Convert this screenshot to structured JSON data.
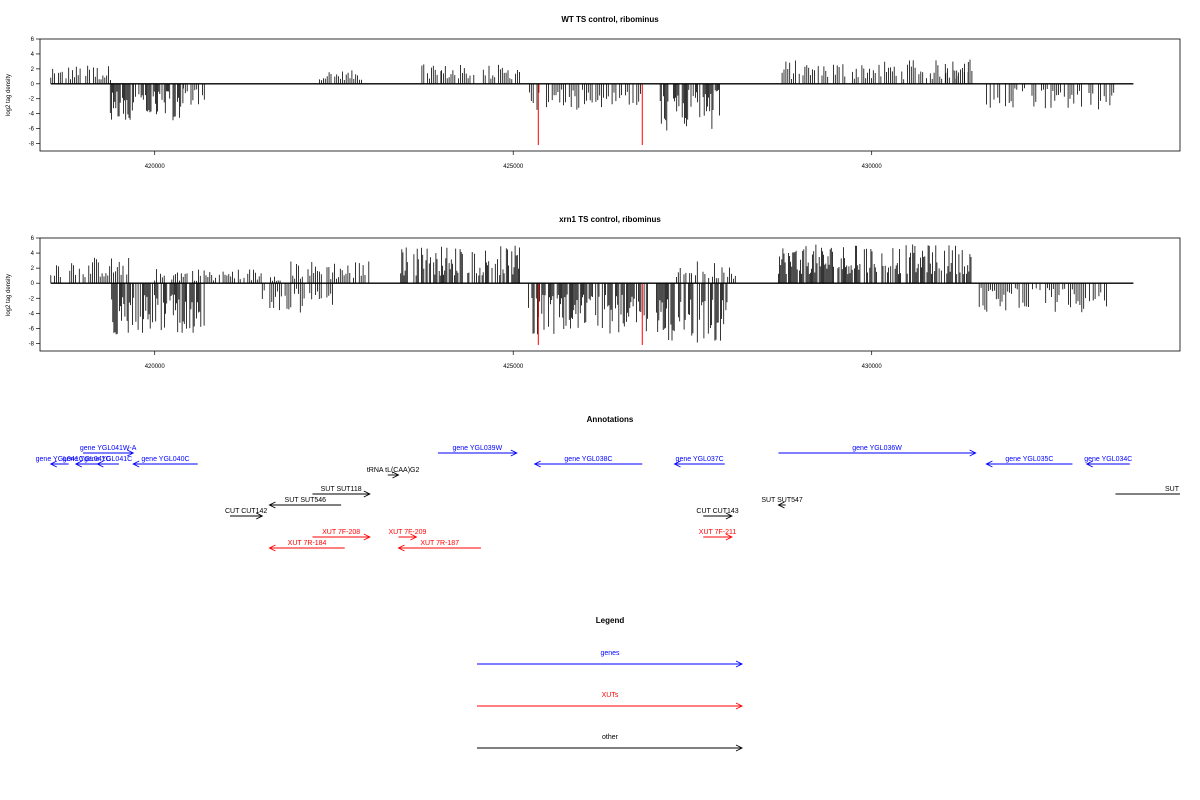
{
  "chart_data": [
    {
      "type": "bar",
      "title": "WT TS control, ribominus",
      "ylabel": "log2 tag density",
      "xlabel": "",
      "xlim": [
        418400,
        434300
      ],
      "ylim": [
        -9,
        6
      ],
      "xticks": [
        420000,
        425000,
        430000
      ],
      "xtick_labels": [
        "420000",
        "425000",
        "430000"
      ],
      "yticks": [
        6,
        4,
        2,
        0,
        -2,
        -4,
        -6,
        -8
      ],
      "ytick_labels": [
        "6",
        "4",
        "2",
        "0",
        "-2",
        "-4",
        "-6",
        "-8"
      ],
      "grid": false,
      "legend": "none",
      "colors": {
        "signal": "#000000",
        "highlight": "#ff0000",
        "baseline": "#000000"
      },
      "highlight_positions": [
        425350,
        426800
      ],
      "highlight_values": [
        -8.2,
        -8.2
      ],
      "baseline_range": [
        418550,
        433650
      ],
      "plus_segments": [
        [
          418550,
          418800,
          0.5,
          2.0
        ],
        [
          418800,
          419400,
          0.5,
          2.5
        ],
        [
          422300,
          422900,
          0.5,
          1.8
        ],
        [
          423700,
          424000,
          0.7,
          3.0
        ],
        [
          424000,
          425100,
          0.6,
          2.6
        ],
        [
          428750,
          431350,
          0.6,
          3.2
        ],
        [
          431000,
          431400,
          1.5,
          3.4
        ]
      ],
      "minus_segments": [
        [
          419350,
          420400,
          -1.0,
          -5.0
        ],
        [
          420400,
          420700,
          -0.6,
          -3.5
        ],
        [
          425200,
          426300,
          -0.6,
          -3.5
        ],
        [
          426300,
          426800,
          -0.8,
          -3.0
        ],
        [
          427050,
          427900,
          -0.8,
          -6.5
        ],
        [
          431600,
          433400,
          -0.6,
          -3.6
        ]
      ]
    },
    {
      "type": "bar",
      "title": "xrn1 TS control, ribominus",
      "ylabel": "log2 tag density",
      "xlabel": "",
      "xlim": [
        418400,
        434300
      ],
      "ylim": [
        -9,
        6
      ],
      "xticks": [
        420000,
        425000,
        430000
      ],
      "xtick_labels": [
        "420000",
        "425000",
        "430000"
      ],
      "yticks": [
        6,
        4,
        2,
        0,
        -2,
        -4,
        -6,
        -8
      ],
      "ytick_labels": [
        "6",
        "4",
        "2",
        "0",
        "-2",
        "-4",
        "-6",
        "-8"
      ],
      "grid": false,
      "legend": "none",
      "colors": {
        "signal": "#000000",
        "highlight": "#ff0000",
        "baseline": "#000000"
      },
      "highlight_positions": [
        425350,
        426800
      ],
      "highlight_values": [
        -8.2,
        -8.2
      ],
      "baseline_range": [
        418550,
        433650
      ],
      "plus_segments": [
        [
          418550,
          419650,
          0.8,
          3.5
        ],
        [
          420000,
          421800,
          0.3,
          2.0
        ],
        [
          421900,
          423000,
          0.5,
          3.0
        ],
        [
          423400,
          425100,
          1.0,
          5.0
        ],
        [
          427250,
          428100,
          0.6,
          3.0
        ],
        [
          428700,
          431400,
          1.2,
          5.2
        ]
      ],
      "minus_segments": [
        [
          419400,
          420700,
          -1.5,
          -7.0
        ],
        [
          421500,
          422500,
          -0.6,
          -4.0
        ],
        [
          425200,
          426900,
          -1.5,
          -6.8
        ],
        [
          427000,
          428000,
          -2.0,
          -8.0
        ],
        [
          431500,
          433300,
          -0.6,
          -4.0
        ]
      ]
    }
  ],
  "annotations": {
    "title": "Annotations",
    "features": [
      {
        "label": "gene YGL041W-A",
        "color": "#0000ff",
        "start": 419000,
        "end": 419700,
        "dir": "right",
        "row": "gene_upper"
      },
      {
        "label": "gene YGL041C",
        "color": "#0000ff",
        "start": 418550,
        "end": 418800,
        "dir": "left",
        "row": "gene_lower"
      },
      {
        "label": "gene YGL041C",
        "color": "#0000ff",
        "start": 418900,
        "end": 419200,
        "dir": "left",
        "row": "gene_lower"
      },
      {
        "label": "gene YGL041C",
        "color": "#0000ff",
        "start": 419200,
        "end": 419500,
        "dir": "left",
        "row": "gene_lower"
      },
      {
        "label": "gene YGL040C",
        "color": "#0000ff",
        "start": 419700,
        "end": 420600,
        "dir": "left",
        "row": "gene_lower"
      },
      {
        "label": "gene YGL039W",
        "color": "#0000ff",
        "start": 423950,
        "end": 425050,
        "dir": "right",
        "row": "gene_upper"
      },
      {
        "label": "gene YGL038C",
        "color": "#0000ff",
        "start": 425300,
        "end": 426800,
        "dir": "left",
        "row": "gene_lower"
      },
      {
        "label": "gene YGL037C",
        "color": "#0000ff",
        "start": 427250,
        "end": 427950,
        "dir": "left",
        "row": "gene_lower"
      },
      {
        "label": "gene YGL036W",
        "color": "#0000ff",
        "start": 428700,
        "end": 431450,
        "dir": "right",
        "row": "gene_upper"
      },
      {
        "label": "gene YGL035C",
        "color": "#0000ff",
        "start": 431600,
        "end": 432800,
        "dir": "left",
        "row": "gene_lower"
      },
      {
        "label": "gene YGL034C",
        "color": "#0000ff",
        "start": 433000,
        "end": 433600,
        "dir": "left",
        "row": "gene_lower"
      },
      {
        "label": "tRNA tL(CAA)G2",
        "color": "#000000",
        "start": 423250,
        "end": 423400,
        "dir": "right",
        "row": "trna"
      },
      {
        "label": "SUT SUT118",
        "color": "#000000",
        "start": 422200,
        "end": 423000,
        "dir": "right",
        "row": "sut_upper"
      },
      {
        "label": "SUT SUT546",
        "color": "#000000",
        "start": 421600,
        "end": 422600,
        "dir": "left",
        "row": "sut_lower"
      },
      {
        "label": "SUT SUT547",
        "color": "#000000",
        "start": 428700,
        "end": 428800,
        "dir": "left",
        "row": "sut_lower"
      },
      {
        "label": "SUT",
        "color": "#000000",
        "start": 433400,
        "end": 434300,
        "dir": "right",
        "row": "sut_edge"
      },
      {
        "label": "CUT CUT142",
        "color": "#000000",
        "start": 421050,
        "end": 421500,
        "dir": "right",
        "row": "cut"
      },
      {
        "label": "CUT CUT143",
        "color": "#000000",
        "start": 427650,
        "end": 428050,
        "dir": "right",
        "row": "cut"
      },
      {
        "label": "XUT 7F-208",
        "color": "#ff0000",
        "start": 422200,
        "end": 423000,
        "dir": "right",
        "row": "xut_upper"
      },
      {
        "label": "XUT 7R-184",
        "color": "#ff0000",
        "start": 421600,
        "end": 422650,
        "dir": "left",
        "row": "xut_lower"
      },
      {
        "label": "XUT 7F-209",
        "color": "#ff0000",
        "start": 423400,
        "end": 423650,
        "dir": "right",
        "row": "xut_upper"
      },
      {
        "label": "XUT 7R-187",
        "color": "#ff0000",
        "start": 423400,
        "end": 424550,
        "dir": "left",
        "row": "xut_lower"
      },
      {
        "label": "XUT 7F-211",
        "color": "#ff0000",
        "start": 427650,
        "end": 428050,
        "dir": "right",
        "row": "xut_upper"
      }
    ]
  },
  "legend": {
    "title": "Legend",
    "items": [
      {
        "label": "genes",
        "color": "#0000ff"
      },
      {
        "label": "XUTs",
        "color": "#ff0000"
      },
      {
        "label": "other",
        "color": "#000000"
      }
    ]
  }
}
